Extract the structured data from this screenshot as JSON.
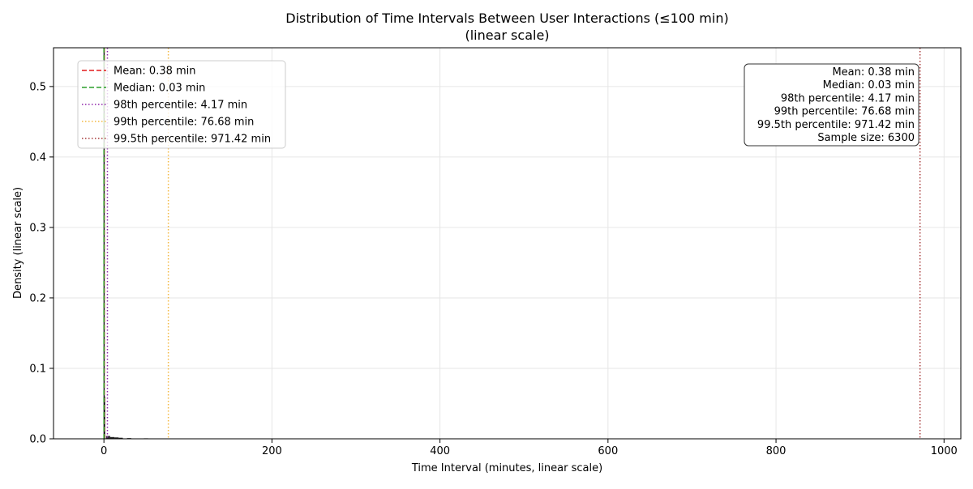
{
  "chart_data": {
    "type": "histogram",
    "title": "Distribution of Time Intervals Between User Interactions (≤100 min)",
    "subtitle": "(linear scale)",
    "xlabel": "Time Interval (minutes, linear scale)",
    "ylabel": "Density (linear scale)",
    "xlim": [
      -60,
      1020
    ],
    "ylim": [
      0,
      0.555
    ],
    "xticks": [
      0,
      200,
      400,
      600,
      800,
      1000
    ],
    "yticks": [
      0.0,
      0.1,
      0.2,
      0.3,
      0.4,
      0.5
    ],
    "xtick_labels": [
      "0",
      "200",
      "400",
      "600",
      "800",
      "1000"
    ],
    "ytick_labels": [
      "0.0",
      "0.1",
      "0.2",
      "0.3",
      "0.4",
      "0.5"
    ],
    "grid": true,
    "histogram": {
      "x": [
        0.25,
        0.75,
        5,
        10,
        15,
        20,
        30,
        50,
        75,
        95
      ],
      "density": [
        0.55,
        0.06,
        0.004,
        0.0025,
        0.002,
        0.0015,
        0.001,
        0.0007,
        0.0005,
        0.0003
      ],
      "color": "#000000"
    },
    "reference_lines": [
      {
        "label": "Mean: 0.38 min",
        "value": 0.38,
        "color": "#e41a1c",
        "style": "dashed"
      },
      {
        "label": "Median: 0.03 min",
        "value": 0.03,
        "color": "#2ca02c",
        "style": "dashed"
      },
      {
        "label": "98th percentile: 4.17 min",
        "value": 4.17,
        "color": "#8e24aa",
        "style": "dotted"
      },
      {
        "label": "99th percentile: 76.68 min",
        "value": 76.68,
        "color": "#f4b942",
        "style": "dotted"
      },
      {
        "label": "99.5th percentile: 971.42 min",
        "value": 971.42,
        "color": "#a63a3a",
        "style": "dotted"
      }
    ],
    "legend_placement": "top-left",
    "stats_box": {
      "placement": "top-right",
      "lines": [
        "Mean: 0.38 min",
        "Median: 0.03 min",
        "98th percentile: 4.17 min",
        "99th percentile: 76.68 min",
        "99.5th percentile: 971.42 min",
        "Sample size: 6300"
      ]
    }
  }
}
